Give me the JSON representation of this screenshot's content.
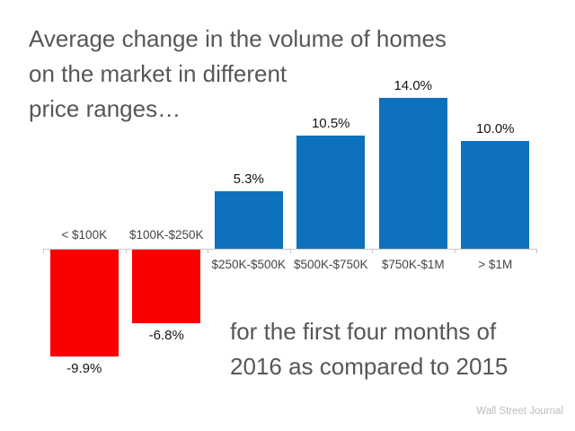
{
  "header": {
    "title_lines": [
      "Average change in the volume of homes",
      "on the market in different",
      "price ranges…"
    ]
  },
  "subtitle": {
    "lines": [
      "for the first four months of",
      "2016 as compared to 2015"
    ]
  },
  "attribution": "Wall Street Journal",
  "chart_data": {
    "type": "bar",
    "title": "Average change in the volume of homes on the market in different price ranges…",
    "subtitle": "for the first four months of 2016 as compared to 2015",
    "categories": [
      "< $100K",
      "$100K-$250K",
      "$250K-$500K",
      "$500K-$750K",
      "$750K-$1M",
      "> $1M"
    ],
    "values": [
      -9.9,
      -6.8,
      5.3,
      10.5,
      14.0,
      10.0
    ],
    "value_labels": [
      "-9.9%",
      "-6.8%",
      "5.3%",
      "10.5%",
      "14.0%",
      "10.0%"
    ],
    "xlabel": "",
    "ylabel": "",
    "ylim": [
      -12,
      16
    ],
    "grid": false,
    "legend": false,
    "source": "Wall Street Journal",
    "colors": {
      "positive": "#0d71bd",
      "negative": "#fc0000",
      "axis": "#c8c8c8",
      "value_label": "#141414",
      "category_label": "#454545"
    }
  }
}
